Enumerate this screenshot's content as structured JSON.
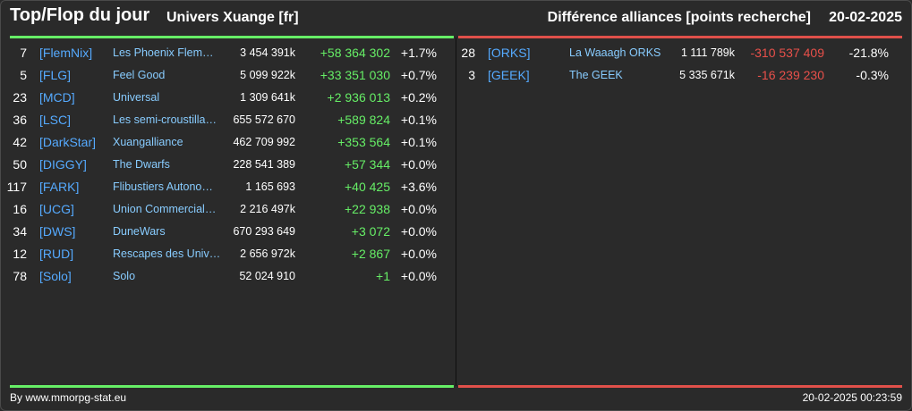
{
  "header": {
    "title": "Top/Flop du jour",
    "subtitle": "Univers Xuange [fr]",
    "heading": "Différence alliances [points recherche]",
    "date": "20-02-2025"
  },
  "top": [
    {
      "rank": "7",
      "tag": "[FlemNix]",
      "name": "Les Phoenix Flem…",
      "points": "3 454 391k",
      "diff": "+58 364 302",
      "pct": "+1.7%"
    },
    {
      "rank": "5",
      "tag": "[FLG]",
      "name": "Feel Good",
      "points": "5 099 922k",
      "diff": "+33 351 030",
      "pct": "+0.7%"
    },
    {
      "rank": "23",
      "tag": "[MCD]",
      "name": "Universal",
      "points": "1 309 641k",
      "diff": "+2 936 013",
      "pct": "+0.2%"
    },
    {
      "rank": "36",
      "tag": "[LSC]",
      "name": "Les semi-croustilla…",
      "points": "655 572 670",
      "diff": "+589 824",
      "pct": "+0.1%"
    },
    {
      "rank": "42",
      "tag": "[DarkStar]",
      "name": "Xuangalliance",
      "points": "462 709 992",
      "diff": "+353 564",
      "pct": "+0.1%"
    },
    {
      "rank": "50",
      "tag": "[DIGGY]",
      "name": "The Dwarfs",
      "points": "228 541 389",
      "diff": "+57 344",
      "pct": "+0.0%"
    },
    {
      "rank": "117",
      "tag": "[FARK]",
      "name": "Flibustiers Autono…",
      "points": "1 165 693",
      "diff": "+40 425",
      "pct": "+3.6%"
    },
    {
      "rank": "16",
      "tag": "[UCG]",
      "name": "Union Commerciale…",
      "points": "2 216 497k",
      "diff": "+22 938",
      "pct": "+0.0%"
    },
    {
      "rank": "34",
      "tag": "[DWS]",
      "name": "DuneWars",
      "points": "670 293 649",
      "diff": "+3 072",
      "pct": "+0.0%"
    },
    {
      "rank": "12",
      "tag": "[RUD]",
      "name": "Rescapes des Univ…",
      "points": "2 656 972k",
      "diff": "+2 867",
      "pct": "+0.0%"
    },
    {
      "rank": "78",
      "tag": "[Solo]",
      "name": "Solo",
      "points": "52 024 910",
      "diff": "+1",
      "pct": "+0.0%"
    }
  ],
  "flop": [
    {
      "rank": "28",
      "tag": "[ORKS]",
      "name": "La Waaagh ORKS",
      "points": "1 111 789k",
      "diff": "-310 537 409",
      "pct": "-21.8%"
    },
    {
      "rank": "3",
      "tag": "[GEEK]",
      "name": "The GEEK",
      "points": "5 335 671k",
      "diff": "-16 239 230",
      "pct": "-0.3%"
    }
  ],
  "footer": {
    "credit": "By www.mmorpg-stat.eu",
    "timestamp": "20-02-2025 00:23:59"
  },
  "colors": {
    "background": "#2a2a2a",
    "positive": "#66ee66",
    "negative": "#e8504a",
    "tag": "#55aaff",
    "name": "#88ccff"
  }
}
